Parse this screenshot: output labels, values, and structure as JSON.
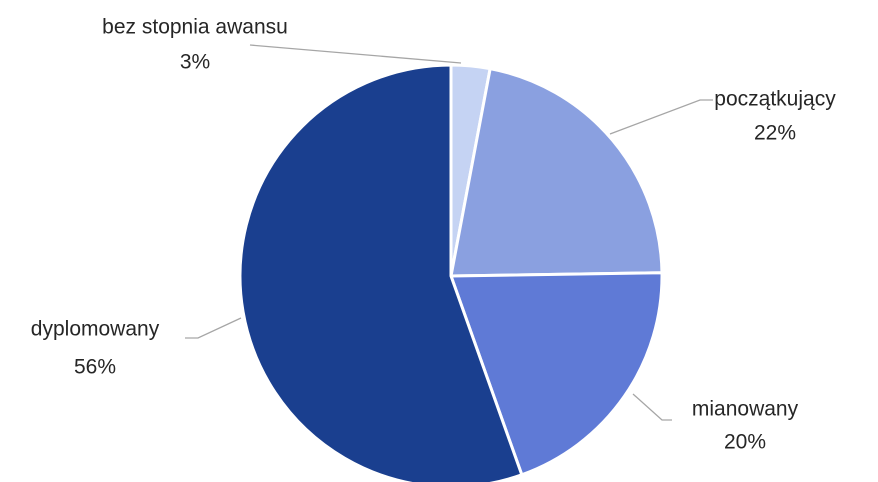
{
  "chart_data": {
    "type": "pie",
    "categories": [
      "bez stopnia awansu",
      "początkujący",
      "mianowany",
      "dyplomowany"
    ],
    "values": [
      3,
      22,
      20,
      56
    ],
    "value_labels": [
      "3%",
      "22%",
      "20%",
      "56%"
    ],
    "colors": [
      "#c5d3f3",
      "#8aa0e0",
      "#5f7ad6",
      "#1a3f8f"
    ]
  }
}
